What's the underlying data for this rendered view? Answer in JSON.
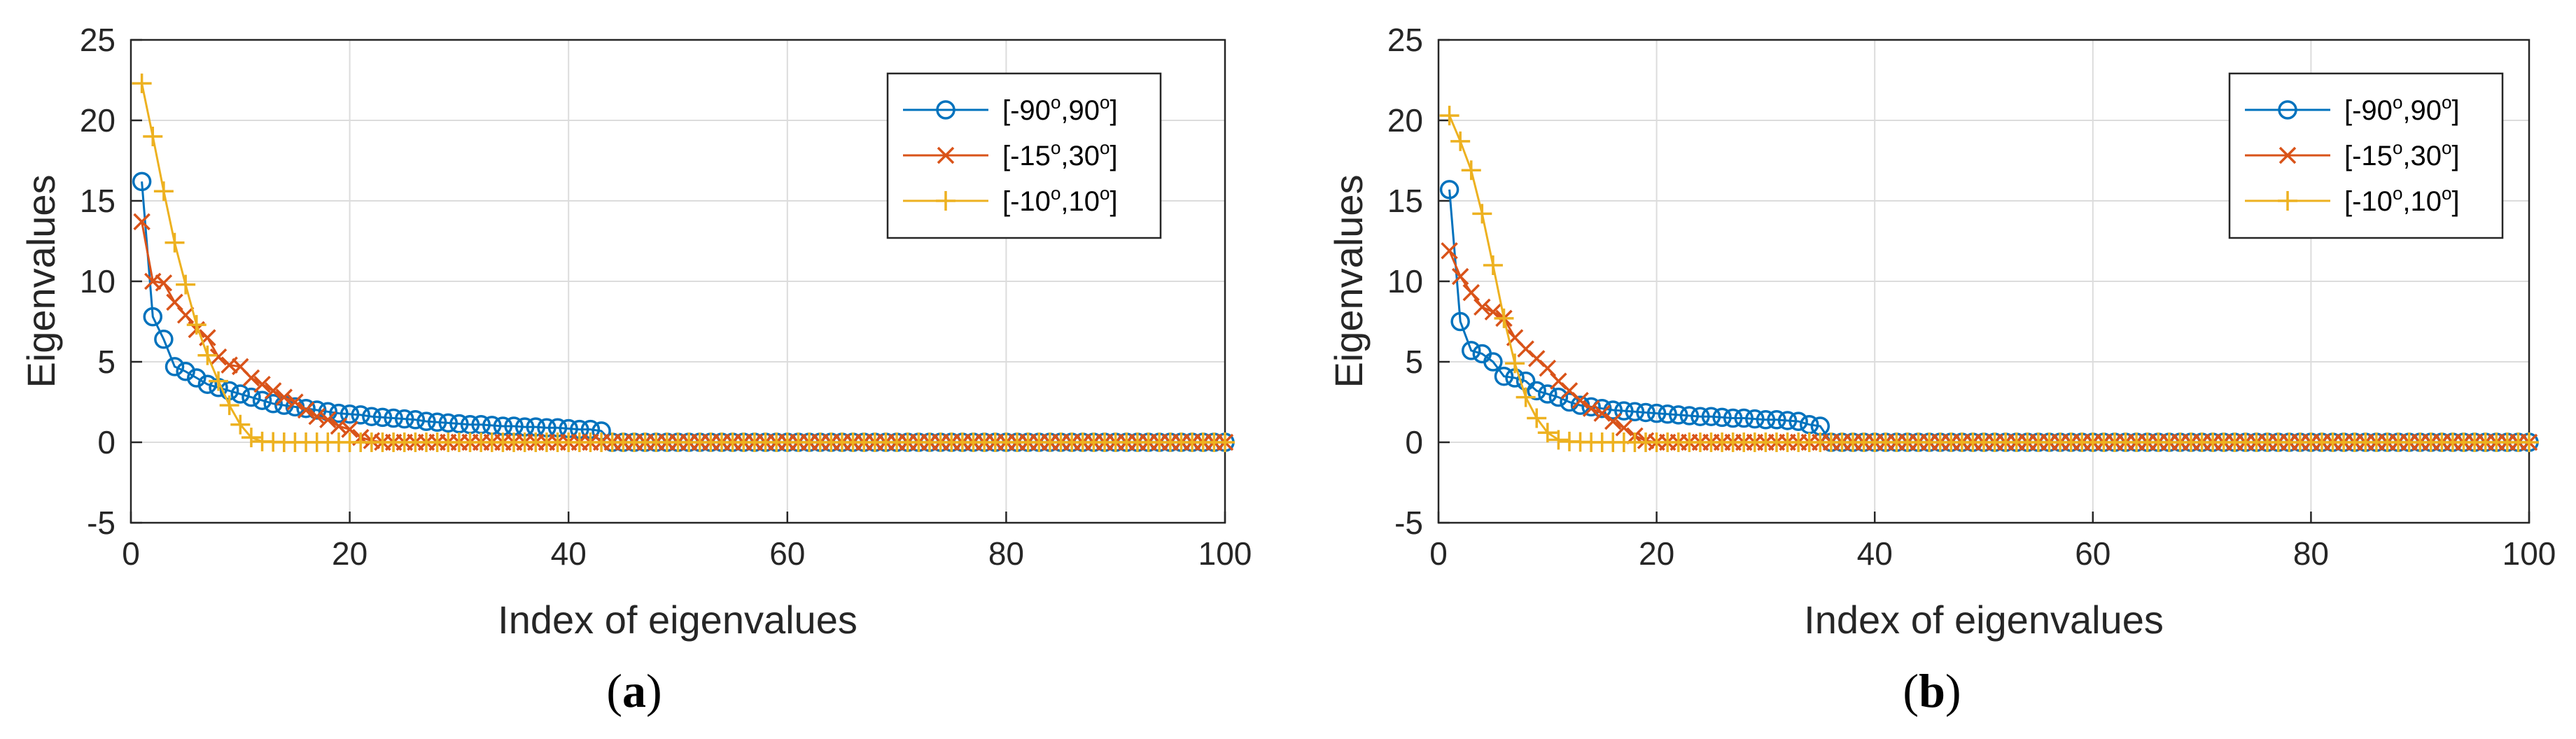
{
  "colors": {
    "s1": "#0072BD",
    "s2": "#D95319",
    "s3": "#EDB120",
    "grid": "#dcdcdc",
    "axis": "#262626"
  },
  "chart_data": [
    {
      "type": "line",
      "caption": {
        "open": "(",
        "letter": "a",
        "close": ")"
      },
      "xlabel": "Index of eigenvalues",
      "ylabel": "Eigenvalues",
      "xlim": [
        0,
        100
      ],
      "ylim": [
        -5,
        25
      ],
      "xticks": [
        "0",
        "20",
        "40",
        "60",
        "80",
        "100"
      ],
      "yticks": [
        "-5",
        "0",
        "5",
        "10",
        "15",
        "20",
        "25"
      ],
      "grid": true,
      "legend_position": "top-right",
      "series": [
        {
          "name": "[-90o,90o]",
          "legend": {
            "a": "[-90",
            "b": "o",
            "c": ",90",
            "d": "o",
            "e": "]"
          },
          "color": "#0072BD",
          "marker": "circle",
          "values": [
            16.2,
            7.8,
            6.4,
            4.7,
            4.4,
            4.0,
            3.6,
            3.4,
            3.2,
            3.0,
            2.8,
            2.6,
            2.4,
            2.3,
            2.2,
            2.1,
            2.0,
            1.9,
            1.8,
            1.75,
            1.7,
            1.6,
            1.55,
            1.5,
            1.45,
            1.4,
            1.3,
            1.25,
            1.2,
            1.15,
            1.1,
            1.1,
            1.05,
            1.0,
            1.0,
            0.95,
            0.95,
            0.9,
            0.9,
            0.85,
            0.8,
            0.8,
            0.7,
            0,
            0,
            0,
            0,
            0,
            0,
            0,
            0,
            0,
            0,
            0,
            0,
            0,
            0,
            0,
            0,
            0,
            0,
            0,
            0,
            0,
            0,
            0,
            0,
            0,
            0,
            0,
            0,
            0,
            0,
            0,
            0,
            0,
            0,
            0,
            0,
            0,
            0,
            0,
            0,
            0,
            0,
            0,
            0,
            0,
            0,
            0,
            0,
            0,
            0,
            0,
            0,
            0,
            0,
            0,
            0,
            0
          ]
        },
        {
          "name": "[-15o,30o]",
          "legend": {
            "a": "[-15",
            "b": "o",
            "c": ",30",
            "d": "o",
            "e": "]"
          },
          "color": "#D95319",
          "marker": "x",
          "values": [
            13.7,
            10.0,
            9.9,
            8.7,
            7.9,
            7.0,
            6.5,
            5.3,
            4.8,
            4.7,
            4.0,
            3.6,
            3.2,
            2.8,
            2.5,
            2.0,
            1.6,
            1.4,
            1.0,
            0.8,
            0.3,
            0.1,
            0,
            0,
            0,
            0,
            0,
            0,
            0,
            0,
            0,
            0,
            0,
            0,
            0,
            0,
            0,
            0,
            0,
            0,
            0,
            0,
            0,
            0,
            0,
            0,
            0,
            0,
            0,
            0,
            0,
            0,
            0,
            0,
            0,
            0,
            0,
            0,
            0,
            0,
            0,
            0,
            0,
            0,
            0,
            0,
            0,
            0,
            0,
            0,
            0,
            0,
            0,
            0,
            0,
            0,
            0,
            0,
            0,
            0,
            0,
            0,
            0,
            0,
            0,
            0,
            0,
            0,
            0,
            0,
            0,
            0,
            0,
            0,
            0,
            0,
            0,
            0,
            0,
            0
          ]
        },
        {
          "name": "[-10o,10o]",
          "legend": {
            "a": "[-10",
            "b": "o",
            "c": ",10",
            "d": "o",
            "e": "]"
          },
          "color": "#EDB120",
          "marker": "plus",
          "values": [
            22.3,
            19.0,
            15.6,
            12.4,
            9.8,
            7.3,
            5.4,
            3.8,
            2.3,
            1.1,
            0.3,
            0.05,
            0.02,
            0,
            0,
            0,
            0,
            0,
            0,
            0,
            0,
            0,
            0,
            0,
            0,
            0,
            0,
            0,
            0,
            0,
            0,
            0,
            0,
            0,
            0,
            0,
            0,
            0,
            0,
            0,
            0,
            0,
            0,
            0,
            0,
            0,
            0,
            0,
            0,
            0,
            0,
            0,
            0,
            0,
            0,
            0,
            0,
            0,
            0,
            0,
            0,
            0,
            0,
            0,
            0,
            0,
            0,
            0,
            0,
            0,
            0,
            0,
            0,
            0,
            0,
            0,
            0,
            0,
            0,
            0,
            0,
            0,
            0,
            0,
            0,
            0,
            0,
            0,
            0,
            0,
            0,
            0,
            0,
            0,
            0,
            0,
            0,
            0,
            0,
            0
          ]
        }
      ]
    },
    {
      "type": "line",
      "caption": {
        "open": "(",
        "letter": "b",
        "close": ")"
      },
      "xlabel": "Index of eigenvalues",
      "ylabel": "Eigenvalues",
      "xlim": [
        0,
        100
      ],
      "ylim": [
        -5,
        25
      ],
      "xticks": [
        "0",
        "20",
        "40",
        "60",
        "80",
        "100"
      ],
      "yticks": [
        "-5",
        "0",
        "5",
        "10",
        "15",
        "20",
        "25"
      ],
      "grid": true,
      "legend_position": "top-right",
      "series": [
        {
          "name": "[-90o,90o]",
          "legend": {
            "a": "[-90",
            "b": "o",
            "c": ",90",
            "d": "o",
            "e": "]"
          },
          "color": "#0072BD",
          "marker": "circle",
          "values": [
            15.7,
            7.5,
            5.7,
            5.5,
            5.0,
            4.1,
            4.0,
            3.8,
            3.2,
            3.0,
            2.8,
            2.5,
            2.3,
            2.2,
            2.1,
            2.0,
            1.95,
            1.9,
            1.85,
            1.8,
            1.75,
            1.7,
            1.65,
            1.6,
            1.6,
            1.55,
            1.5,
            1.5,
            1.45,
            1.4,
            1.4,
            1.35,
            1.3,
            1.1,
            1.0,
            0,
            0,
            0,
            0,
            0,
            0,
            0,
            0,
            0,
            0,
            0,
            0,
            0,
            0,
            0,
            0,
            0,
            0,
            0,
            0,
            0,
            0,
            0,
            0,
            0,
            0,
            0,
            0,
            0,
            0,
            0,
            0,
            0,
            0,
            0,
            0,
            0,
            0,
            0,
            0,
            0,
            0,
            0,
            0,
            0,
            0,
            0,
            0,
            0,
            0,
            0,
            0,
            0,
            0,
            0,
            0,
            0,
            0,
            0,
            0,
            0,
            0,
            0,
            0,
            0
          ]
        },
        {
          "name": "[-15o,30o]",
          "legend": {
            "a": "[-15",
            "b": "o",
            "c": ",30",
            "d": "o",
            "e": "]"
          },
          "color": "#D95319",
          "marker": "x",
          "values": [
            11.9,
            10.3,
            9.3,
            8.4,
            8.1,
            7.7,
            6.5,
            5.8,
            5.2,
            4.6,
            3.8,
            3.2,
            2.6,
            2.1,
            1.8,
            1.3,
            0.9,
            0.4,
            0.1,
            0,
            0,
            0,
            0,
            0,
            0,
            0,
            0,
            0,
            0,
            0,
            0,
            0,
            0,
            0,
            0,
            0,
            0,
            0,
            0,
            0,
            0,
            0,
            0,
            0,
            0,
            0,
            0,
            0,
            0,
            0,
            0,
            0,
            0,
            0,
            0,
            0,
            0,
            0,
            0,
            0,
            0,
            0,
            0,
            0,
            0,
            0,
            0,
            0,
            0,
            0,
            0,
            0,
            0,
            0,
            0,
            0,
            0,
            0,
            0,
            0,
            0,
            0,
            0,
            0,
            0,
            0,
            0,
            0,
            0,
            0,
            0,
            0,
            0,
            0,
            0,
            0,
            0,
            0,
            0,
            0
          ]
        },
        {
          "name": "[-10o,10o]",
          "legend": {
            "a": "[-10",
            "b": "o",
            "c": ",10",
            "d": "o",
            "e": "]"
          },
          "color": "#EDB120",
          "marker": "plus",
          "values": [
            20.3,
            18.7,
            16.9,
            14.2,
            11.0,
            7.7,
            4.9,
            2.8,
            1.5,
            0.6,
            0.15,
            0.05,
            0.02,
            0,
            0,
            0,
            0,
            0,
            0,
            0,
            0,
            0,
            0,
            0,
            0,
            0,
            0,
            0,
            0,
            0,
            0,
            0,
            0,
            0,
            0,
            0,
            0,
            0,
            0,
            0,
            0,
            0,
            0,
            0,
            0,
            0,
            0,
            0,
            0,
            0,
            0,
            0,
            0,
            0,
            0,
            0,
            0,
            0,
            0,
            0,
            0,
            0,
            0,
            0,
            0,
            0,
            0,
            0,
            0,
            0,
            0,
            0,
            0,
            0,
            0,
            0,
            0,
            0,
            0,
            0,
            0,
            0,
            0,
            0,
            0,
            0,
            0,
            0,
            0,
            0,
            0,
            0,
            0,
            0,
            0,
            0,
            0,
            0,
            0,
            0
          ]
        }
      ]
    }
  ]
}
